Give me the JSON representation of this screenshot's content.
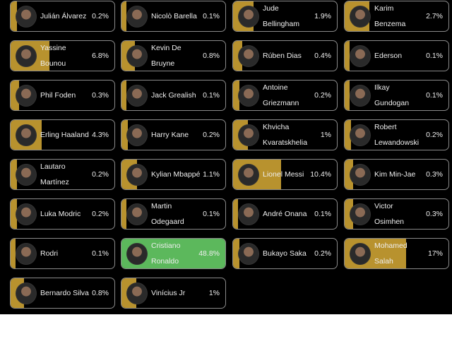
{
  "colors": {
    "bar": "#b8922e",
    "leader": "#5cb85c",
    "border": "#8a8a8a"
  },
  "players": [
    {
      "name": "Julián Álvarez",
      "percent": 0.2
    },
    {
      "name": "Nicolò Barella",
      "percent": 0.1
    },
    {
      "name": "Jude Bellingham",
      "percent": 1.9
    },
    {
      "name": "Karim Benzema",
      "percent": 2.7
    },
    {
      "name": "Yassine Bounou",
      "percent": 6.8
    },
    {
      "name": "Kevin De Bruyne",
      "percent": 0.8
    },
    {
      "name": "Rúben Dias",
      "percent": 0.4
    },
    {
      "name": "Ederson",
      "percent": 0.1
    },
    {
      "name": "Phil Foden",
      "percent": 0.3
    },
    {
      "name": "Jack Grealish",
      "percent": 0.1
    },
    {
      "name": "Antoine Griezmann",
      "percent": 0.2
    },
    {
      "name": "Ilkay Gundogan",
      "percent": 0.1
    },
    {
      "name": "Erling Haaland",
      "percent": 4.3
    },
    {
      "name": "Harry Kane",
      "percent": 0.2
    },
    {
      "name": "Khvicha Kvaratskhelia",
      "percent": 1
    },
    {
      "name": "Robert Lewandowski",
      "percent": 0.2
    },
    {
      "name": "Lautaro Martínez",
      "percent": 0.2
    },
    {
      "name": "Kylian Mbappé",
      "percent": 1.1
    },
    {
      "name": "Lionel Messi",
      "percent": 10.4
    },
    {
      "name": "Kim Min-Jae",
      "percent": 0.3
    },
    {
      "name": "Luka Modric",
      "percent": 0.2
    },
    {
      "name": "Martin Odegaard",
      "percent": 0.1
    },
    {
      "name": "André Onana",
      "percent": 0.1
    },
    {
      "name": "Victor Osimhen",
      "percent": 0.3
    },
    {
      "name": "Rodri",
      "percent": 0.1
    },
    {
      "name": "Cristiano Ronaldo",
      "percent": 48.8,
      "leader": true
    },
    {
      "name": "Bukayo Saka",
      "percent": 0.2
    },
    {
      "name": "Mohamed Salah",
      "percent": 17
    },
    {
      "name": "Bernardo Silva",
      "percent": 0.8
    },
    {
      "name": "Vinícius Jr",
      "percent": 1
    }
  ]
}
